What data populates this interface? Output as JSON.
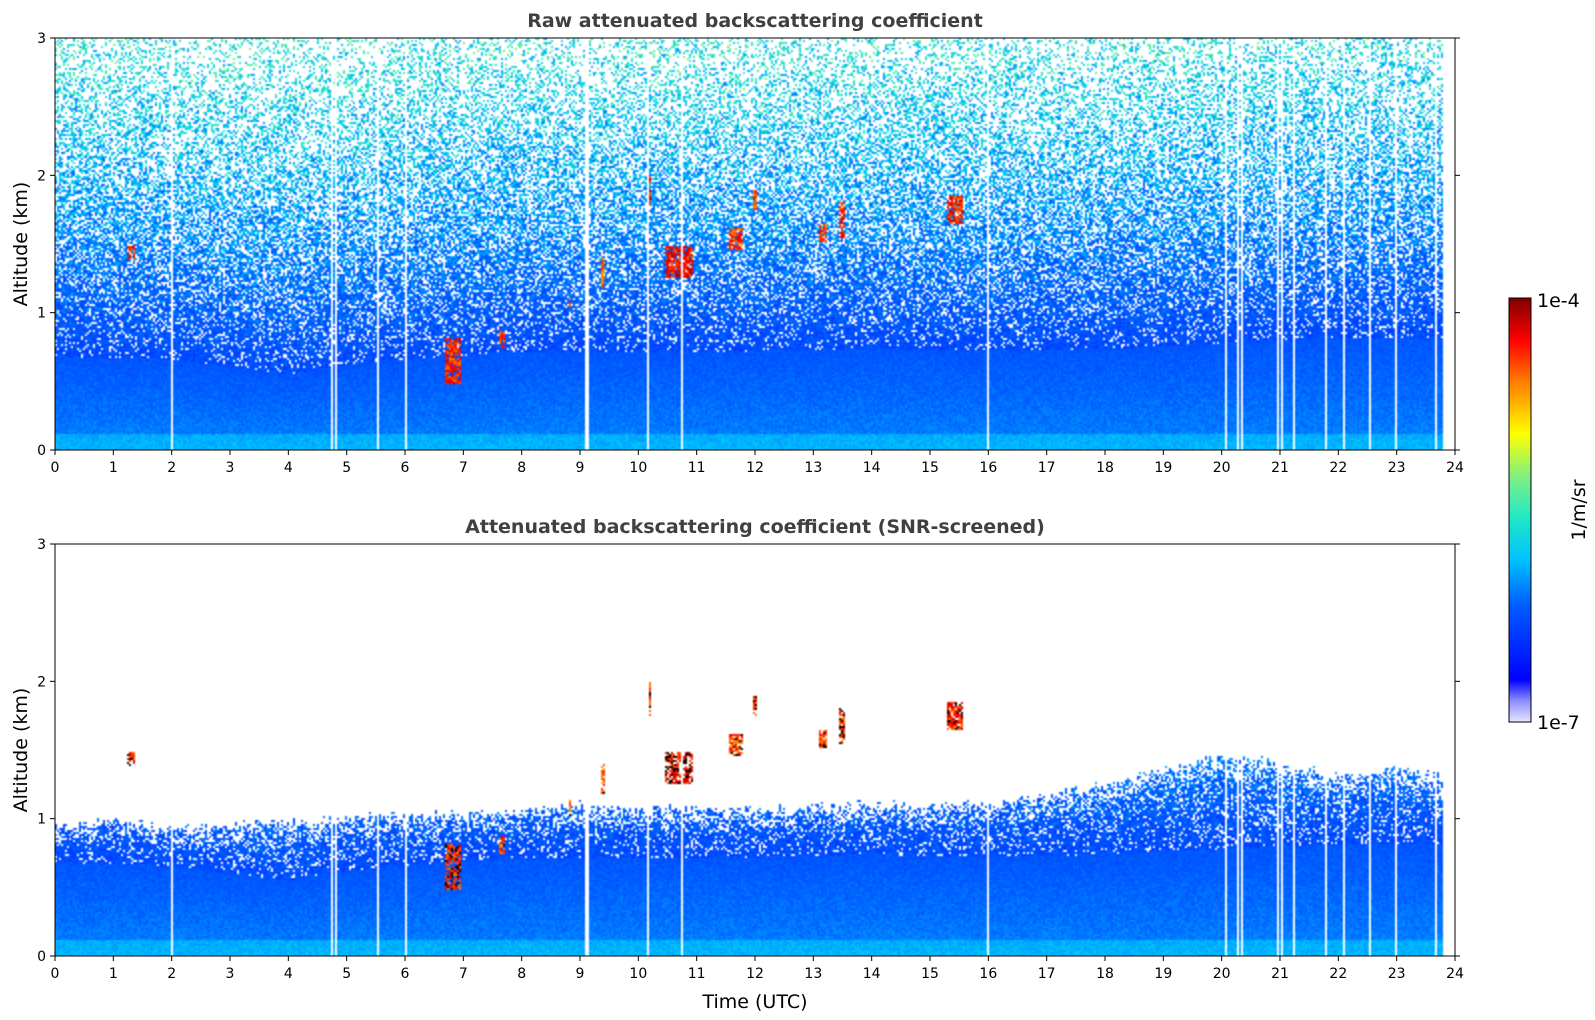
{
  "chart_data": [
    {
      "type": "heatmap",
      "title": "Raw attenuated backscattering coefficient",
      "xlabel": "",
      "ylabel": "Altitude (km)",
      "xlim": [
        0,
        24
      ],
      "ylim": [
        0,
        3
      ],
      "x_ticks": [
        "0",
        "1",
        "2",
        "3",
        "4",
        "5",
        "6",
        "7",
        "8",
        "9",
        "10",
        "11",
        "12",
        "13",
        "14",
        "15",
        "16",
        "17",
        "18",
        "19",
        "20",
        "21",
        "22",
        "23",
        "24"
      ],
      "y_ticks": [
        "0",
        "1",
        "2",
        "3"
      ],
      "boundary_layer_top_km": [
        [
          0,
          0.68
        ],
        [
          2,
          0.66
        ],
        [
          4,
          0.55
        ],
        [
          5,
          0.62
        ],
        [
          6,
          0.66
        ],
        [
          8,
          0.72
        ],
        [
          10,
          0.72
        ],
        [
          12,
          0.72
        ],
        [
          14,
          0.74
        ],
        [
          16,
          0.72
        ],
        [
          18,
          0.74
        ],
        [
          20,
          0.78
        ],
        [
          22,
          0.82
        ],
        [
          24,
          0.82
        ]
      ],
      "data_gaps_utc": [
        2.02,
        4.75,
        4.83,
        5.55,
        6.02,
        9.12,
        10.18,
        10.75,
        16.0,
        20.08,
        20.28,
        20.35,
        20.95,
        21.05,
        21.25,
        21.8,
        22.1,
        22.55,
        23.0,
        23.68
      ],
      "cloud_features": [
        {
          "time_start": 1.25,
          "time_end": 1.38,
          "alt_bottom_km": 1.38,
          "alt_top_km": 1.48,
          "level": 0.95
        },
        {
          "time_start": 6.7,
          "time_end": 6.95,
          "alt_bottom_km": 0.48,
          "alt_top_km": 0.82,
          "level": 0.95
        },
        {
          "time_start": 7.6,
          "time_end": 7.7,
          "alt_bottom_km": 0.75,
          "alt_top_km": 0.88,
          "level": 0.92
        },
        {
          "time_start": 8.8,
          "time_end": 8.85,
          "alt_bottom_km": 1.0,
          "alt_top_km": 1.15,
          "level": 0.9
        },
        {
          "time_start": 9.35,
          "time_end": 9.42,
          "alt_bottom_km": 1.18,
          "alt_top_km": 1.4,
          "level": 0.9
        },
        {
          "time_start": 10.15,
          "time_end": 10.22,
          "alt_bottom_km": 1.75,
          "alt_top_km": 2.0,
          "level": 0.95
        },
        {
          "time_start": 10.45,
          "time_end": 10.95,
          "alt_bottom_km": 1.25,
          "alt_top_km": 1.48,
          "level": 0.97
        },
        {
          "time_start": 11.55,
          "time_end": 11.8,
          "alt_bottom_km": 1.45,
          "alt_top_km": 1.62,
          "level": 0.93
        },
        {
          "time_start": 11.98,
          "time_end": 12.05,
          "alt_bottom_km": 1.75,
          "alt_top_km": 1.9,
          "level": 0.92
        },
        {
          "time_start": 13.1,
          "time_end": 13.25,
          "alt_bottom_km": 1.52,
          "alt_top_km": 1.65,
          "level": 0.92
        },
        {
          "time_start": 13.45,
          "time_end": 13.55,
          "alt_bottom_km": 1.55,
          "alt_top_km": 1.8,
          "level": 0.95
        },
        {
          "time_start": 15.3,
          "time_end": 15.55,
          "alt_bottom_km": 1.65,
          "alt_top_km": 1.85,
          "level": 0.95
        }
      ]
    },
    {
      "type": "heatmap",
      "title": "Attenuated backscattering coefficient (SNR-screened)",
      "xlabel": "Time (UTC)",
      "ylabel": "Altitude (km)",
      "xlim": [
        0,
        24
      ],
      "ylim": [
        0,
        3
      ],
      "x_ticks": [
        "0",
        "1",
        "2",
        "3",
        "4",
        "5",
        "6",
        "7",
        "8",
        "9",
        "10",
        "11",
        "12",
        "13",
        "14",
        "15",
        "16",
        "17",
        "18",
        "19",
        "20",
        "21",
        "22",
        "23",
        "24"
      ],
      "y_ticks": [
        "0",
        "1",
        "2",
        "3"
      ],
      "screened_top_km": [
        [
          0,
          0.95
        ],
        [
          1,
          0.98
        ],
        [
          2,
          0.92
        ],
        [
          3,
          0.95
        ],
        [
          4,
          0.98
        ],
        [
          5,
          1.0
        ],
        [
          6,
          1.02
        ],
        [
          7,
          1.02
        ],
        [
          8,
          1.05
        ],
        [
          9,
          1.1
        ],
        [
          10,
          1.05
        ],
        [
          11,
          1.08
        ],
        [
          12,
          1.05
        ],
        [
          13,
          1.08
        ],
        [
          14,
          1.1
        ],
        [
          15,
          1.08
        ],
        [
          16,
          1.1
        ],
        [
          17,
          1.15
        ],
        [
          18,
          1.25
        ],
        [
          19,
          1.35
        ],
        [
          20,
          1.45
        ],
        [
          21,
          1.4
        ],
        [
          22,
          1.3
        ],
        [
          23,
          1.35
        ],
        [
          23.8,
          1.3
        ]
      ]
    }
  ],
  "colorbar": {
    "label": "1/m/sr",
    "max_label": "1e-4",
    "min_label": "1e-7",
    "colormap": [
      "#e8e8ff",
      "#0000ff",
      "#0050ff",
      "#00b0ff",
      "#30e0d0",
      "#a0f060",
      "#ffff00",
      "#ff8000",
      "#ff0000",
      "#800000"
    ]
  }
}
